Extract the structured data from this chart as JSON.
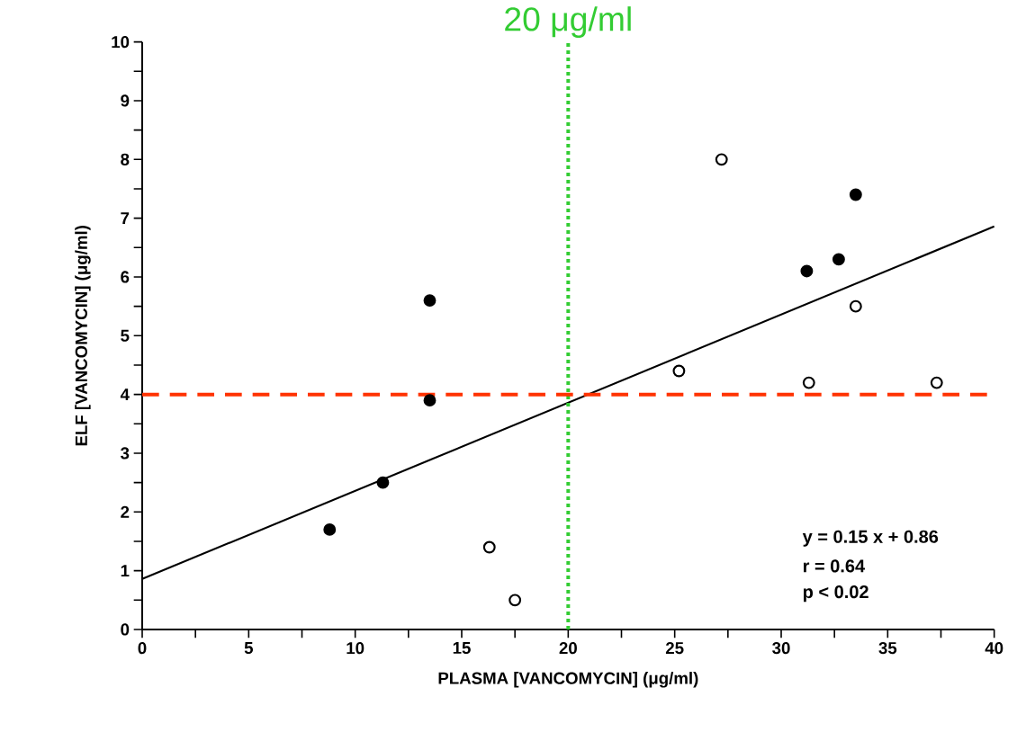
{
  "chart_data": {
    "type": "scatter",
    "xlabel": "PLASMA [VANCOMYCIN] (μg/ml)",
    "ylabel": "ELF [VANCOMYCIN] (μg/ml)",
    "xlim": [
      0,
      40
    ],
    "ylim": [
      0,
      10
    ],
    "xticks": [
      0,
      {
        "value": 2.5,
        "label": null
      },
      5,
      {
        "value": 7.5,
        "label": null
      },
      10,
      {
        "value": 12.5,
        "label": null
      },
      15,
      {
        "value": 17.5,
        "label": null
      },
      20,
      {
        "value": 22.5,
        "label": null
      },
      25,
      {
        "value": 27.5,
        "label": null
      },
      30,
      {
        "value": 32.5,
        "label": null
      },
      35,
      {
        "value": 37.5,
        "label": null
      },
      40
    ],
    "yticks": [
      0,
      {
        "value": 0.5,
        "label": null
      },
      1,
      {
        "value": 1.5,
        "label": null
      },
      2,
      {
        "value": 2.5,
        "label": null
      },
      3,
      {
        "value": 3.5,
        "label": null
      },
      4,
      {
        "value": 4.5,
        "label": null
      },
      5,
      {
        "value": 5.5,
        "label": null
      },
      6,
      {
        "value": 6.5,
        "label": null
      },
      7,
      {
        "value": 7.5,
        "label": null
      },
      8,
      {
        "value": 8.5,
        "label": null
      },
      9,
      {
        "value": 9.5,
        "label": null
      },
      10
    ],
    "marker": "circle",
    "series": [
      {
        "color": "#000000",
        "x": [
          8.8,
          11.3,
          13.5,
          13.5,
          31.2,
          32.7,
          33.5
        ],
        "values": [
          1.7,
          2.5,
          5.6,
          3.9,
          6.1,
          6.3,
          7.4
        ]
      },
      {
        "color": "#ffffff",
        "x": [
          16.3,
          17.5,
          25.2,
          27.2,
          31.3,
          33.5,
          37.3
        ],
        "values": [
          1.4,
          0.5,
          4.4,
          8.0,
          4.2,
          5.5,
          4.2
        ]
      },
      {
        "type": "line",
        "color": "#000000",
        "marker": "none",
        "line_style": "solid",
        "x": [
          0,
          40
        ],
        "values": [
          0.86,
          6.86
        ]
      }
    ],
    "ref_lines": [
      {
        "axis": "x",
        "value": 20,
        "label": "20 μg/ml",
        "color": "#33cc33",
        "line_style": "dotted"
      },
      {
        "axis": "y",
        "value": 4,
        "color": "#ff3300",
        "line_style": "dashed"
      }
    ],
    "annotations": [
      "y = 0.15 x + 0.86",
      "r = 0.64",
      "p < 0.02"
    ]
  }
}
